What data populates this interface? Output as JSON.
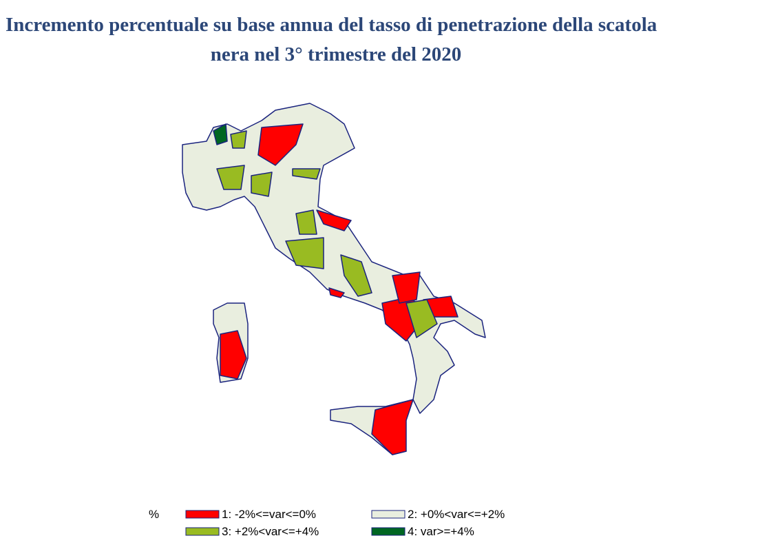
{
  "title": [
    "Incremento percentuale su base annua del tasso di penetrazione della scatola",
    "nera nel 3° trimestre del 2020"
  ],
  "legend": {
    "unit": "%",
    "items": [
      {
        "label": "1: -2%<=var<=0%",
        "color": "#ff0000"
      },
      {
        "label": "2: +0%<var<=+2%",
        "color": "#e9eedf"
      },
      {
        "label": "3: +2%<var<=+4%",
        "color": "#99bb22"
      },
      {
        "label": "4: var>=+4%",
        "color": "#006622"
      }
    ]
  }
}
